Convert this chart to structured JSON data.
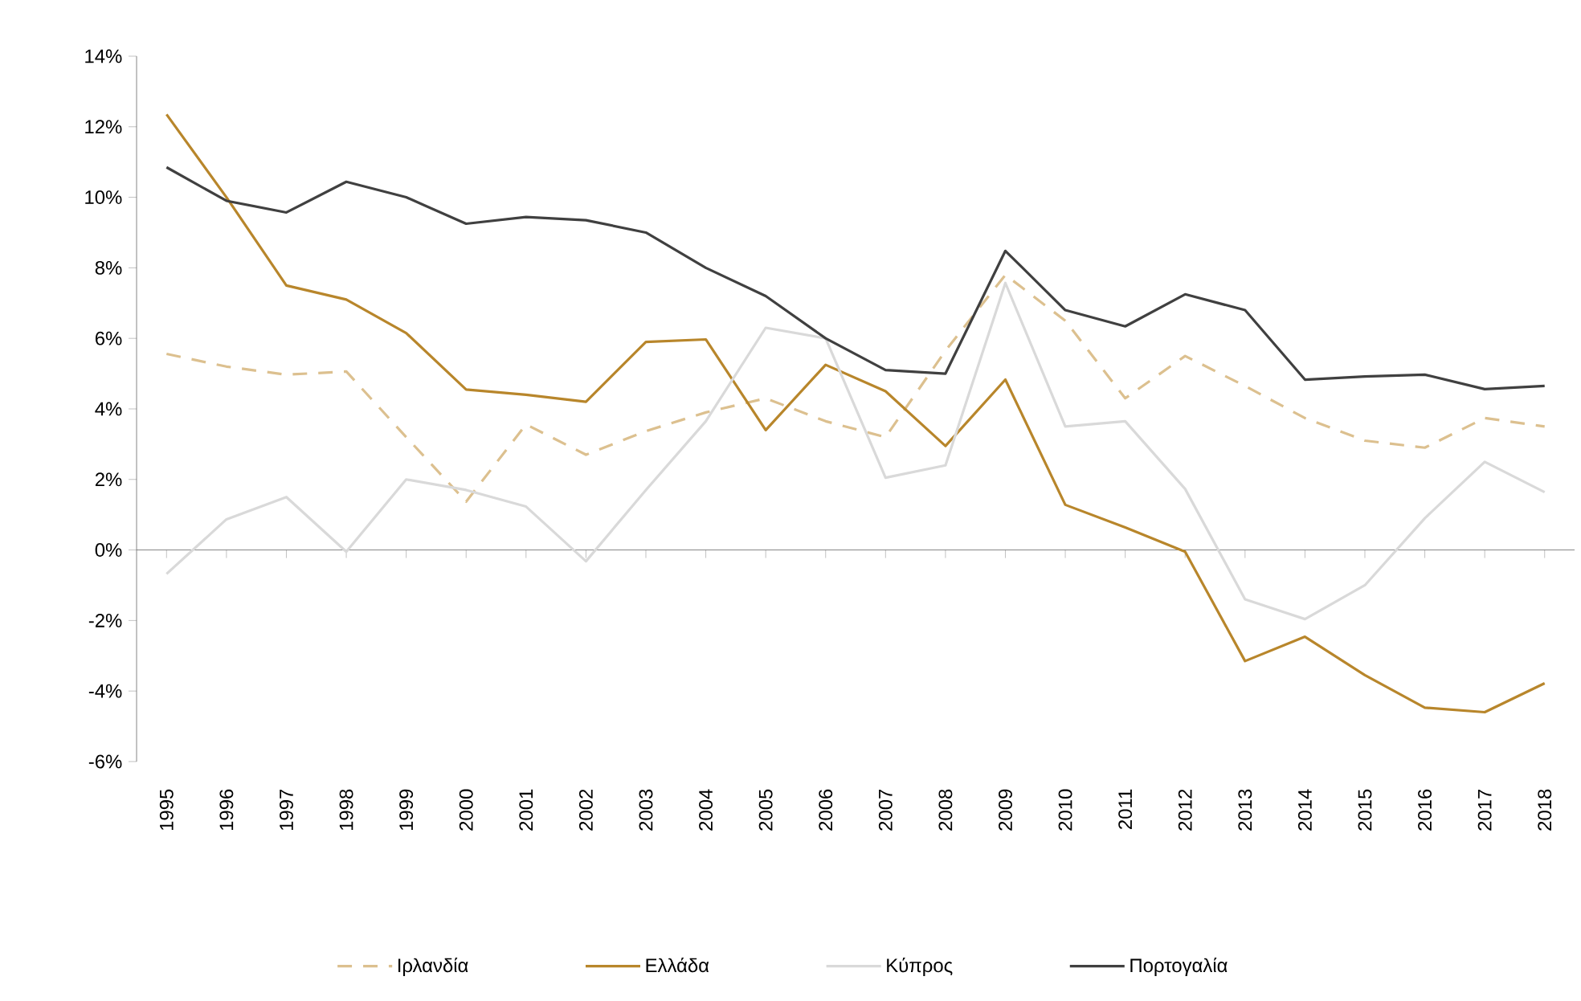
{
  "chart_data": {
    "type": "line",
    "categories": [
      "1995",
      "1996",
      "1997",
      "1998",
      "1999",
      "2000",
      "2001",
      "2002",
      "2003",
      "2004",
      "2005",
      "2006",
      "2007",
      "2008",
      "2009",
      "2010",
      "2011",
      "2012",
      "2013",
      "2014",
      "2015",
      "2016",
      "2017",
      "2018"
    ],
    "series": [
      {
        "name": "Ιρλανδία",
        "color": "#dcc08f",
        "line_style": "dashed",
        "values": [
          5.56,
          5.2,
          4.97,
          5.06,
          3.2,
          1.37,
          3.56,
          2.7,
          3.37,
          3.9,
          4.3,
          3.65,
          3.2,
          5.65,
          7.8,
          6.5,
          4.3,
          5.5,
          4.65,
          3.74,
          3.1,
          2.9,
          3.74,
          3.5
        ]
      },
      {
        "name": "Ελλάδα",
        "color": "#b8862b",
        "line_style": "solid",
        "values": [
          12.35,
          10.0,
          7.5,
          7.1,
          6.15,
          4.55,
          4.4,
          4.2,
          5.9,
          5.97,
          3.4,
          5.25,
          4.5,
          2.95,
          4.83,
          1.28,
          0.64,
          -0.05,
          -3.15,
          -2.46,
          -3.55,
          -4.47,
          -4.6,
          -3.78
        ]
      },
      {
        "name": "Κύπρος",
        "color": "#d9d9d9",
        "line_style": "solid",
        "values": [
          -0.68,
          0.87,
          1.5,
          -0.05,
          2.0,
          1.7,
          1.23,
          -0.32,
          1.7,
          3.65,
          6.3,
          6.0,
          2.05,
          2.4,
          7.57,
          3.5,
          3.65,
          1.73,
          -1.4,
          -1.96,
          -1.0,
          0.9,
          2.5,
          1.64
        ]
      },
      {
        "name": "Πορτογαλία",
        "color": "#404040",
        "line_style": "solid",
        "values": [
          10.85,
          9.9,
          9.57,
          10.44,
          10.0,
          9.25,
          9.44,
          9.35,
          9.0,
          8.0,
          7.2,
          6.0,
          5.1,
          5.0,
          8.48,
          6.8,
          6.34,
          7.25,
          6.8,
          4.83,
          4.92,
          4.97,
          4.56,
          4.65
        ]
      }
    ],
    "ylim": [
      -6,
      14
    ],
    "yticks": [
      {
        "value": -6,
        "label": "-6%"
      },
      {
        "value": -4,
        "label": "-4%"
      },
      {
        "value": -2,
        "label": "-2%"
      },
      {
        "value": 0,
        "label": "0%"
      },
      {
        "value": 2,
        "label": "2%"
      },
      {
        "value": 4,
        "label": "4%"
      },
      {
        "value": 6,
        "label": "6%"
      },
      {
        "value": 8,
        "label": "8%"
      },
      {
        "value": 10,
        "label": "10%"
      },
      {
        "value": 12,
        "label": "12%"
      },
      {
        "value": 14,
        "label": "14%"
      }
    ],
    "legend": "bottom"
  }
}
